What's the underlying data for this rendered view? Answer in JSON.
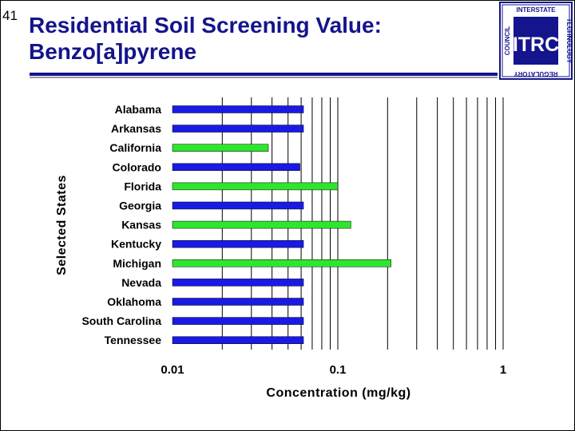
{
  "slide": {
    "number": "41",
    "title_line1": "Residential Soil Screening Value:",
    "title_line2": "Benzo[a]pyrene"
  },
  "logo": {
    "left_text": "COUNCIL",
    "top_text": "INTERSTATE",
    "right_text": "TECHNOLOGY",
    "bottom_text": "REGULATORY",
    "center_text": "ITRC",
    "color": "#14148c"
  },
  "colors": {
    "title": "#14148c",
    "series_blue": "#1a1ae6",
    "series_green": "#2ee62e"
  },
  "chart_data": {
    "type": "bar",
    "orientation": "horizontal",
    "x_scale": "log",
    "xlim": [
      0.01,
      1
    ],
    "xticks": [
      "0.01",
      "0.1",
      "1"
    ],
    "xlabel": "Concentration (mg/kg)",
    "ylabel": "Selected States",
    "grid": "vertical",
    "categories": [
      "Alabama",
      "Arkansas",
      "California",
      "Colorado",
      "Florida",
      "Georgia",
      "Kansas",
      "Kentucky",
      "Michigan",
      "Nevada",
      "Oklahoma",
      "South Carolina",
      "Tennessee"
    ],
    "values": [
      0.062,
      0.062,
      0.038,
      0.059,
      0.1,
      0.062,
      0.12,
      0.062,
      0.21,
      0.062,
      0.062,
      0.062,
      0.062
    ],
    "bar_colors": [
      "blue",
      "blue",
      "green",
      "blue",
      "green",
      "blue",
      "green",
      "blue",
      "green",
      "blue",
      "blue",
      "blue",
      "blue"
    ]
  }
}
